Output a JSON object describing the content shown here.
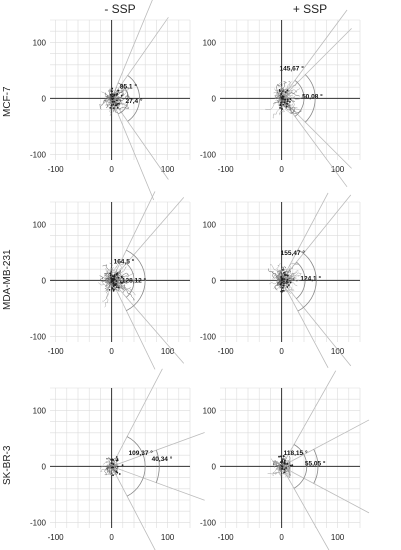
{
  "figure": {
    "columns": [
      "- SSP",
      "+ SSP"
    ],
    "rows": [
      "MCF-7",
      "MDA-MB-231",
      "SK-BR-3"
    ]
  },
  "chart_data": [
    {
      "type": "scatter",
      "row": "MCF-7",
      "column": "- SSP",
      "xlim": [
        -110,
        140
      ],
      "ylim": [
        -110,
        140
      ],
      "ticks": [
        -100,
        0,
        100
      ],
      "grid": true,
      "angle_labels": [
        "85,1 °",
        "27,4 °"
      ],
      "angle_label_pos": [
        [
          30,
          18
        ],
        [
          40,
          -8
        ]
      ],
      "sector1": [
        -135,
        135
      ],
      "sector2": [
        -55,
        55
      ],
      "arc_r1": 30,
      "arc_r2": 50,
      "spread": [
        55,
        20,
        30,
        35
      ],
      "density": 60
    },
    {
      "type": "scatter",
      "row": "MCF-7",
      "column": "+ SSP",
      "xlim": [
        -110,
        140
      ],
      "ylim": [
        -110,
        140
      ],
      "ticks": [
        -100,
        0,
        100
      ],
      "grid": true,
      "angle_labels": [
        "145,67 °",
        "50,08 °"
      ],
      "angle_label_pos": [
        [
          18,
          50
        ],
        [
          55,
          0
        ]
      ],
      "sector1": [
        -107,
        107
      ],
      "sector2": [
        -45,
        45
      ],
      "arc_r1": 40,
      "arc_r2": 60,
      "spread": [
        40,
        30,
        35,
        35
      ],
      "density": 60
    },
    {
      "type": "scatter",
      "row": "MDA-MB-231",
      "column": "- SSP",
      "xlim": [
        -110,
        140
      ],
      "ylim": [
        -110,
        140
      ],
      "ticks": [
        -100,
        0,
        100
      ],
      "grid": true,
      "angle_labels": [
        "164,5 °",
        "128,12 °"
      ],
      "angle_label_pos": [
        [
          22,
          30
        ],
        [
          40,
          -4
        ]
      ],
      "sector1": [
        -98,
        98
      ],
      "sector2": [
        -64,
        64
      ],
      "arc_r1": 40,
      "arc_r2": 60,
      "spread": [
        65,
        55,
        55,
        50
      ],
      "density": 90
    },
    {
      "type": "scatter",
      "row": "MDA-MB-231",
      "column": "+ SSP",
      "xlim": [
        -110,
        140
      ],
      "ylim": [
        -110,
        140
      ],
      "ticks": [
        -100,
        0,
        100
      ],
      "grid": true,
      "angle_labels": [
        "155,47 °",
        "124,1 °"
      ],
      "angle_label_pos": [
        [
          20,
          45
        ],
        [
          52,
          0
        ]
      ],
      "sector1": [
        -102,
        102
      ],
      "sector2": [
        -62,
        62
      ],
      "arc_r1": 42,
      "arc_r2": 62,
      "spread": [
        35,
        30,
        45,
        50
      ],
      "density": 70
    },
    {
      "type": "scatter",
      "row": "SK-BR-3",
      "column": "- SSP",
      "xlim": [
        -110,
        140
      ],
      "ylim": [
        -110,
        140
      ],
      "ticks": [
        -100,
        0,
        100
      ],
      "grid": true,
      "angle_labels": [
        "109,37 °",
        "40,34 °"
      ],
      "angle_label_pos": [
        [
          52,
          20
        ],
        [
          90,
          10
        ]
      ],
      "sector1": [
        -125,
        125
      ],
      "sector2": [
        -20,
        20
      ],
      "arc_r1": 60,
      "arc_r2": 85,
      "spread": [
        10,
        15,
        20,
        15
      ],
      "density": 35
    },
    {
      "type": "scatter",
      "row": "SK-BR-3",
      "column": "+ SSP",
      "xlim": [
        -110,
        140
      ],
      "ylim": [
        -110,
        140
      ],
      "ticks": [
        -100,
        0,
        100
      ],
      "grid": true,
      "angle_labels": [
        "118,15 °",
        "55,05 °"
      ],
      "angle_label_pos": [
        [
          25,
          20
        ],
        [
          60,
          2
        ]
      ],
      "sector1": [
        -121,
        121
      ],
      "sector2": [
        -28,
        28
      ],
      "arc_r1": 45,
      "arc_r2": 65,
      "spread": [
        15,
        20,
        25,
        20
      ],
      "density": 40
    }
  ]
}
